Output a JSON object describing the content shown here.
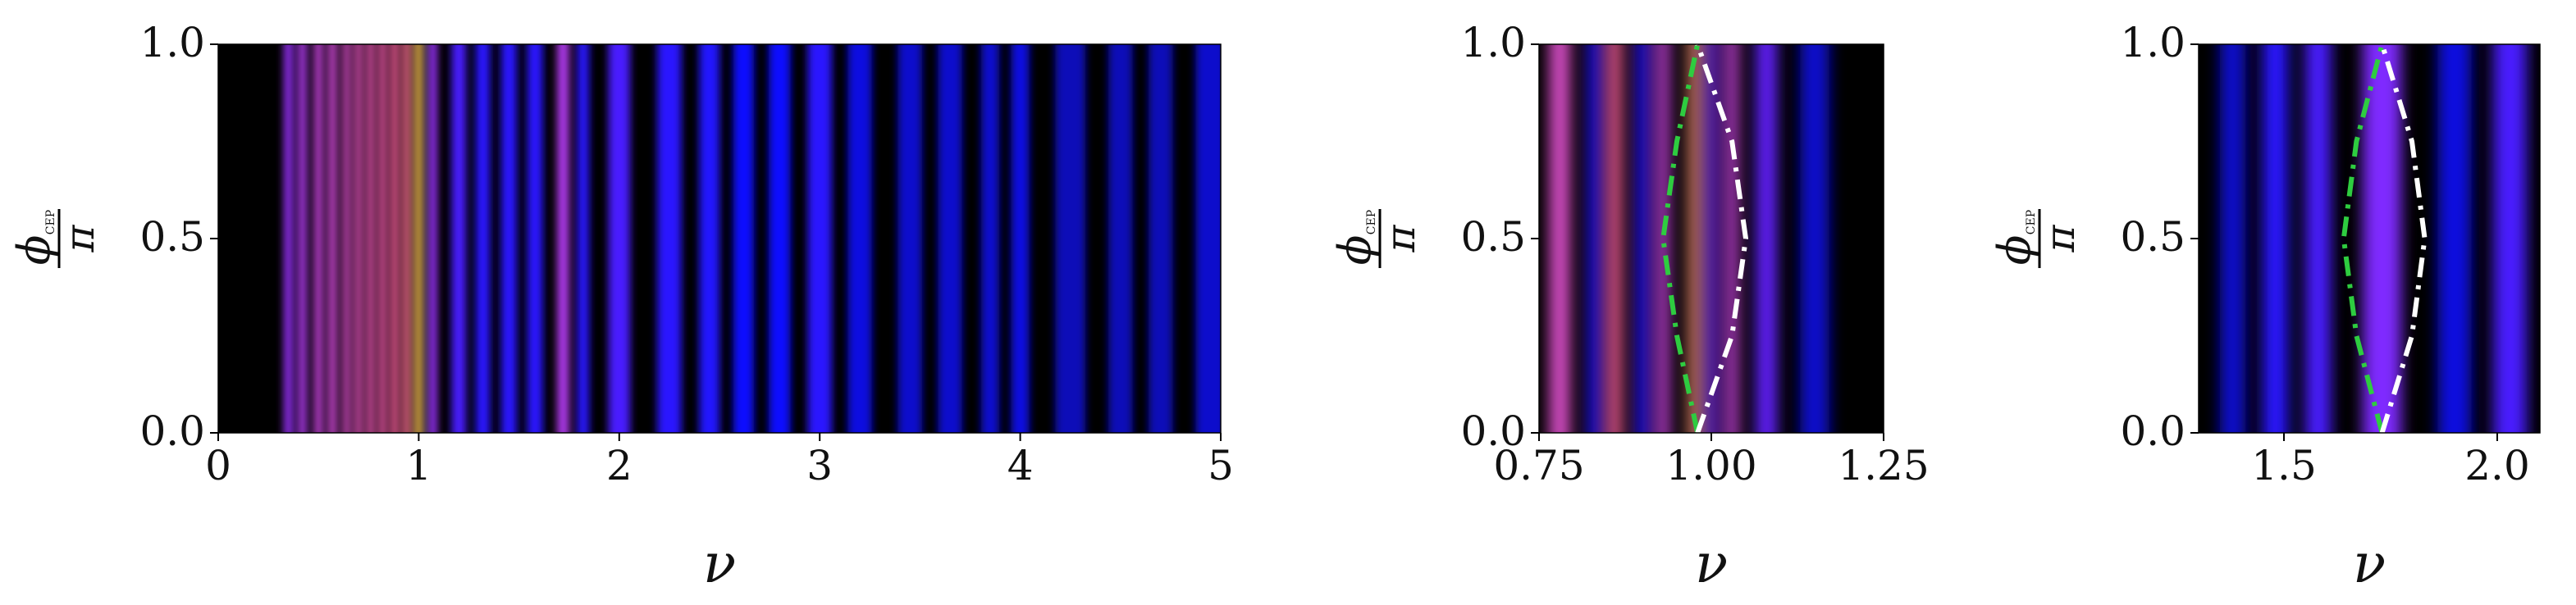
{
  "chart_data": [
    {
      "type": "heatmap",
      "xlabel": "ν",
      "ylabel": {
        "symbol": "ϕ",
        "subscript": "CEP",
        "denominator": "π"
      },
      "x": [
        0.35,
        0.42,
        0.5,
        0.57,
        0.64,
        0.7,
        0.76,
        0.82,
        0.88,
        0.94,
        1.0,
        1.07,
        1.2,
        1.32,
        1.45,
        1.58,
        1.72,
        1.82,
        2.0,
        2.25,
        2.45,
        2.62,
        2.8,
        3.0,
        3.2,
        3.45,
        3.65,
        3.85,
        4.0,
        4.25,
        4.5,
        4.7,
        4.95
      ],
      "values": [
        0.5,
        0.55,
        0.6,
        0.62,
        0.65,
        0.68,
        0.7,
        0.72,
        0.75,
        0.78,
        0.95,
        0.5,
        0.35,
        0.3,
        0.3,
        0.3,
        0.55,
        0.3,
        0.35,
        0.3,
        0.28,
        0.25,
        0.25,
        0.3,
        0.22,
        0.2,
        0.2,
        0.2,
        0.22,
        0.18,
        0.18,
        0.18,
        0.2
      ],
      "xlim": [
        0,
        5
      ],
      "xticks": [
        0,
        1,
        2,
        3,
        4,
        5
      ],
      "ylim": [
        0,
        1
      ],
      "yticks": [
        {
          "value": 0,
          "label": "0.0"
        },
        {
          "value": 0.5,
          "label": "0.5"
        },
        {
          "value": 1,
          "label": "1.0"
        }
      ],
      "colormap": [
        "#000000",
        "#1010ff",
        "#9b30ff",
        "#ff60a0",
        "#ffe040"
      ],
      "series": []
    },
    {
      "type": "heatmap",
      "xlabel": "ν",
      "ylabel": {
        "symbol": "ϕ",
        "subscript": "CEP",
        "denominator": "π"
      },
      "x": [
        0.78,
        0.83,
        0.86,
        0.9,
        0.93,
        0.975,
        1.0,
        1.03,
        1.08,
        1.15
      ],
      "values": [
        0.65,
        0.3,
        0.75,
        0.3,
        0.6,
        0.85,
        0.45,
        0.6,
        0.4,
        0.2
      ],
      "xlim": [
        0.75,
        1.25
      ],
      "xticks": [
        {
          "value": 0.75,
          "label": "0.75"
        },
        {
          "value": 1,
          "label": "1.00"
        },
        {
          "value": 1.25,
          "label": "1.25"
        }
      ],
      "ylim": [
        0,
        1
      ],
      "yticks": [
        {
          "value": 0,
          "label": "0.0"
        },
        {
          "value": 0.5,
          "label": "0.5"
        },
        {
          "value": 1,
          "label": "1.0"
        }
      ],
      "colormap": [
        "#000000",
        "#1010ff",
        "#9b30ff",
        "#ff60a0",
        "#ffe040"
      ],
      "linestyle": "dashdot",
      "series": [
        {
          "color": "#2ecc40",
          "x": [
            0.98,
            0.95,
            0.93,
            0.95,
            0.98
          ],
          "values": [
            0,
            0.25,
            0.5,
            0.75,
            1
          ]
        },
        {
          "color": "#ffffff",
          "x": [
            0.98,
            1.03,
            1.05,
            1.03,
            0.98
          ],
          "values": [
            0,
            0.25,
            0.5,
            0.75,
            1
          ]
        }
      ]
    },
    {
      "type": "heatmap",
      "xlabel": "ν",
      "ylabel": {
        "symbol": "ϕ",
        "subscript": "CEP",
        "denominator": "π"
      },
      "x": [
        1.38,
        1.48,
        1.58,
        1.73,
        1.9,
        2.03
      ],
      "values": [
        0.2,
        0.3,
        0.35,
        0.45,
        0.22,
        0.35
      ],
      "xlim": [
        1.3,
        2.1
      ],
      "xticks": [
        {
          "value": 1.5,
          "label": "1.5"
        },
        {
          "value": 2,
          "label": "2.0"
        }
      ],
      "ylim": [
        0,
        1
      ],
      "yticks": [
        {
          "value": 0,
          "label": "0.0"
        },
        {
          "value": 0.5,
          "label": "0.5"
        },
        {
          "value": 1,
          "label": "1.0"
        }
      ],
      "colormap": [
        "#000000",
        "#1010ff",
        "#9b30ff",
        "#ff60a0",
        "#ffe040"
      ],
      "linestyle": "dashdot",
      "series": [
        {
          "color": "#2ecc40",
          "x": [
            1.73,
            1.67,
            1.64,
            1.67,
            1.73
          ],
          "values": [
            0,
            0.25,
            0.5,
            0.75,
            1
          ]
        },
        {
          "color": "#ffffff",
          "x": [
            1.73,
            1.8,
            1.83,
            1.8,
            1.73
          ],
          "values": [
            0,
            0.25,
            0.5,
            0.75,
            1
          ]
        }
      ]
    }
  ]
}
